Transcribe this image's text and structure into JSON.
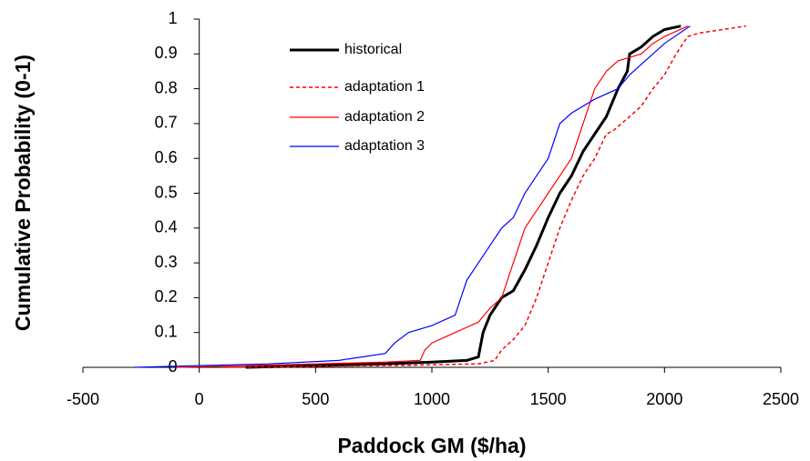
{
  "chart_data": {
    "type": "line",
    "xlabel": "Paddock GM ($/ha)",
    "ylabel": "Cumulative Probability (0-1)",
    "xlim": [
      -500,
      2500
    ],
    "xticks": [
      -500,
      0,
      500,
      1000,
      1500,
      2000,
      2500
    ],
    "ylim": [
      0,
      1
    ],
    "yticks": [
      0,
      0.1,
      0.2,
      0.3,
      0.4,
      0.5,
      0.6,
      0.7,
      0.8,
      0.9,
      1
    ],
    "series": [
      {
        "name": "historical",
        "color": "#000000",
        "dash": "solid",
        "width": 3,
        "x": [
          200,
          500,
          800,
          1000,
          1150,
          1200,
          1220,
          1250,
          1300,
          1350,
          1400,
          1450,
          1500,
          1550,
          1600,
          1650,
          1700,
          1750,
          1800,
          1840,
          1850,
          1900,
          1950,
          2000,
          2070
        ],
        "values": [
          0,
          0.005,
          0.01,
          0.015,
          0.02,
          0.03,
          0.1,
          0.15,
          0.2,
          0.22,
          0.28,
          0.35,
          0.43,
          0.5,
          0.55,
          0.62,
          0.67,
          0.72,
          0.8,
          0.85,
          0.9,
          0.92,
          0.95,
          0.97,
          0.98
        ]
      },
      {
        "name": "adaptation 1",
        "color": "#ff0000",
        "dash": "dotted",
        "width": 1.5,
        "x": [
          100,
          500,
          900,
          1200,
          1270,
          1300,
          1350,
          1400,
          1450,
          1500,
          1550,
          1600,
          1650,
          1700,
          1750,
          1780,
          1850,
          1900,
          1950,
          2000,
          2050,
          2100,
          2150,
          2250,
          2350
        ],
        "values": [
          0,
          0.003,
          0.006,
          0.01,
          0.02,
          0.05,
          0.08,
          0.12,
          0.2,
          0.3,
          0.4,
          0.48,
          0.55,
          0.6,
          0.67,
          0.68,
          0.72,
          0.75,
          0.8,
          0.84,
          0.9,
          0.95,
          0.96,
          0.97,
          0.98
        ]
      },
      {
        "name": "adaptation 2",
        "color": "#ff0000",
        "dash": "solid",
        "width": 1.2,
        "x": [
          -100,
          200,
          500,
          800,
          950,
          970,
          1000,
          1100,
          1200,
          1250,
          1300,
          1350,
          1400,
          1450,
          1500,
          1550,
          1600,
          1650,
          1700,
          1750,
          1800,
          1900,
          1950,
          2000,
          2100
        ],
        "values": [
          0,
          0.005,
          0.01,
          0.015,
          0.02,
          0.05,
          0.07,
          0.1,
          0.13,
          0.17,
          0.2,
          0.3,
          0.4,
          0.45,
          0.5,
          0.55,
          0.6,
          0.7,
          0.8,
          0.85,
          0.88,
          0.9,
          0.93,
          0.95,
          0.98
        ]
      },
      {
        "name": "adaptation 3",
        "color": "#0000ff",
        "dash": "solid",
        "width": 1.2,
        "x": [
          -280,
          0,
          300,
          600,
          800,
          840,
          900,
          1000,
          1100,
          1150,
          1200,
          1250,
          1300,
          1350,
          1400,
          1450,
          1500,
          1550,
          1600,
          1700,
          1800,
          1850,
          1900,
          2000,
          2110
        ],
        "values": [
          0,
          0.005,
          0.01,
          0.02,
          0.04,
          0.07,
          0.1,
          0.12,
          0.15,
          0.25,
          0.3,
          0.35,
          0.4,
          0.43,
          0.5,
          0.55,
          0.6,
          0.7,
          0.73,
          0.77,
          0.8,
          0.84,
          0.87,
          0.93,
          0.98
        ]
      }
    ]
  }
}
